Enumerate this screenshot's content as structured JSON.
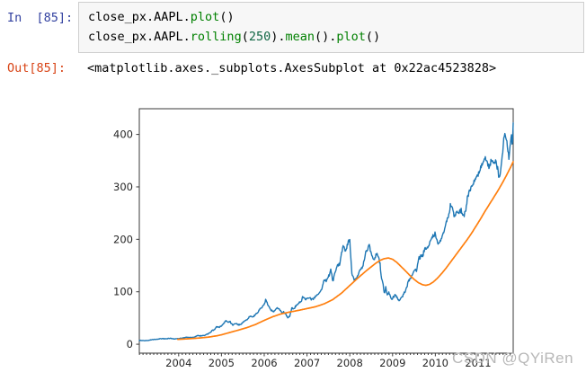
{
  "notebook": {
    "input_prompt": "In  [85]:",
    "output_prompt": "Out[85]:",
    "code_lines": [
      {
        "segments": [
          {
            "text": "close_px.AAPL.",
            "kind": "plain"
          },
          {
            "text": "plot",
            "kind": "method"
          },
          {
            "text": "()",
            "kind": "plain"
          }
        ]
      },
      {
        "segments": [
          {
            "text": "close_px.AAPL.",
            "kind": "plain"
          },
          {
            "text": "rolling",
            "kind": "method"
          },
          {
            "text": "(",
            "kind": "plain"
          },
          {
            "text": "250",
            "kind": "number"
          },
          {
            "text": ").",
            "kind": "plain"
          },
          {
            "text": "mean",
            "kind": "method"
          },
          {
            "text": "().",
            "kind": "plain"
          },
          {
            "text": "plot",
            "kind": "method"
          },
          {
            "text": "()",
            "kind": "plain"
          }
        ]
      }
    ],
    "output_text": "<matplotlib.axes._subplots.AxesSubplot at 0x22ac4523828>",
    "colors": {
      "input_prompt": "#303F9F",
      "output_prompt": "#D84315",
      "plain": "#000000",
      "method": "#008000",
      "number": "#116644",
      "code_bg": "#f7f7f7",
      "code_border": "#cfcfcf"
    }
  },
  "watermark": {
    "text": "CSDN @QYiRen",
    "color": "#b8b8b8"
  },
  "chart_data": {
    "type": "line",
    "title": "",
    "xlabel": "",
    "ylabel": "",
    "grid": false,
    "legend": "none",
    "xlim": [
      2003.08,
      2011.82
    ],
    "ylim": [
      -17,
      449
    ],
    "xticks": [
      2004,
      2005,
      2006,
      2007,
      2008,
      2009,
      2010,
      2011
    ],
    "yticks": [
      0,
      100,
      200,
      300,
      400
    ],
    "frame_color": "#3a3a3a",
    "tick_label_color": "#262626",
    "series": [
      {
        "key": "aapl-close",
        "name": "close_px.AAPL",
        "color": "#1f77b4",
        "width": 1.4,
        "noisy": true,
        "points": [
          [
            2003.08,
            7.2
          ],
          [
            2003.15,
            7.3
          ],
          [
            2003.22,
            7.0
          ],
          [
            2003.3,
            7.4
          ],
          [
            2003.38,
            8.6
          ],
          [
            2003.45,
            9.3
          ],
          [
            2003.5,
            9.6
          ],
          [
            2003.57,
            10.4
          ],
          [
            2003.62,
            11.0
          ],
          [
            2003.68,
            10.3
          ],
          [
            2003.75,
            11.0
          ],
          [
            2003.8,
            11.5
          ],
          [
            2003.85,
            10.4
          ],
          [
            2003.92,
            10.2
          ],
          [
            2003.98,
            10.7
          ],
          [
            2004.05,
            11.3
          ],
          [
            2004.12,
            12.0
          ],
          [
            2004.18,
            13.6
          ],
          [
            2004.25,
            12.9
          ],
          [
            2004.3,
            13.2
          ],
          [
            2004.38,
            14.0
          ],
          [
            2004.45,
            16.3
          ],
          [
            2004.5,
            15.7
          ],
          [
            2004.56,
            16.2
          ],
          [
            2004.62,
            17.3
          ],
          [
            2004.68,
            19.4
          ],
          [
            2004.73,
            21.5
          ],
          [
            2004.78,
            26.2
          ],
          [
            2004.84,
            27.5
          ],
          [
            2004.88,
            33.5
          ],
          [
            2004.95,
            32.2
          ],
          [
            2005.0,
            35.5
          ],
          [
            2005.05,
            38.4
          ],
          [
            2005.1,
            44.9
          ],
          [
            2005.15,
            41.7
          ],
          [
            2005.2,
            43.0
          ],
          [
            2005.26,
            36.1
          ],
          [
            2005.32,
            39.8
          ],
          [
            2005.4,
            36.8
          ],
          [
            2005.46,
            38.2
          ],
          [
            2005.52,
            42.7
          ],
          [
            2005.6,
            46.9
          ],
          [
            2005.64,
            51.3
          ],
          [
            2005.7,
            53.6
          ],
          [
            2005.74,
            51.2
          ],
          [
            2005.8,
            57.6
          ],
          [
            2005.86,
            61.8
          ],
          [
            2005.9,
            67.8
          ],
          [
            2005.96,
            71.9
          ],
          [
            2006.0,
            75.5
          ],
          [
            2006.04,
            85.6
          ],
          [
            2006.08,
            75.0
          ],
          [
            2006.13,
            68.5
          ],
          [
            2006.2,
            62.7
          ],
          [
            2006.25,
            64.5
          ],
          [
            2006.3,
            70.4
          ],
          [
            2006.36,
            66.2
          ],
          [
            2006.42,
            59.8
          ],
          [
            2006.46,
            61.0
          ],
          [
            2006.5,
            57.3
          ],
          [
            2006.55,
            50.7
          ],
          [
            2006.6,
            54.0
          ],
          [
            2006.64,
            67.9
          ],
          [
            2006.7,
            68.0
          ],
          [
            2006.75,
            74.0
          ],
          [
            2006.8,
            77.0
          ],
          [
            2006.86,
            81.1
          ],
          [
            2006.9,
            91.7
          ],
          [
            2006.96,
            84.8
          ],
          [
            2007.0,
            85.7
          ],
          [
            2007.06,
            89.0
          ],
          [
            2007.1,
            84.6
          ],
          [
            2007.16,
            87.0
          ],
          [
            2007.22,
            92.9
          ],
          [
            2007.3,
            99.8
          ],
          [
            2007.35,
            107.0
          ],
          [
            2007.4,
            121.2
          ],
          [
            2007.46,
            122.0
          ],
          [
            2007.52,
            131.8
          ],
          [
            2007.56,
            143.7
          ],
          [
            2007.6,
            119.0
          ],
          [
            2007.66,
            138.5
          ],
          [
            2007.7,
            148.0
          ],
          [
            2007.76,
            153.5
          ],
          [
            2007.8,
            170.0
          ],
          [
            2007.85,
            189.9
          ],
          [
            2007.88,
            178.0
          ],
          [
            2007.92,
            182.2
          ],
          [
            2007.97,
            198.1
          ],
          [
            2008.0,
            194.8
          ],
          [
            2008.05,
            135.4
          ],
          [
            2008.1,
            122.0
          ],
          [
            2008.16,
            125.0
          ],
          [
            2008.22,
            140.0
          ],
          [
            2008.27,
            143.5
          ],
          [
            2008.32,
            152.0
          ],
          [
            2008.37,
            173.9
          ],
          [
            2008.42,
            181.2
          ],
          [
            2008.46,
            188.7
          ],
          [
            2008.52,
            167.4
          ],
          [
            2008.57,
            158.9
          ],
          [
            2008.62,
            173.0
          ],
          [
            2008.66,
            169.5
          ],
          [
            2008.71,
            151.6
          ],
          [
            2008.74,
            127.8
          ],
          [
            2008.78,
            113.7
          ],
          [
            2008.81,
            97.0
          ],
          [
            2008.84,
            107.6
          ],
          [
            2008.88,
            92.0
          ],
          [
            2008.91,
            98.2
          ],
          [
            2008.94,
            92.7
          ],
          [
            2008.98,
            85.4
          ],
          [
            2009.02,
            90.1
          ],
          [
            2009.06,
            94.5
          ],
          [
            2009.1,
            89.3
          ],
          [
            2009.15,
            83.1
          ],
          [
            2009.2,
            89.0
          ],
          [
            2009.26,
            95.0
          ],
          [
            2009.32,
            105.1
          ],
          [
            2009.37,
            119.5
          ],
          [
            2009.42,
            125.8
          ],
          [
            2009.47,
            135.8
          ],
          [
            2009.52,
            142.4
          ],
          [
            2009.56,
            139.0
          ],
          [
            2009.61,
            163.4
          ],
          [
            2009.66,
            168.2
          ],
          [
            2009.71,
            170.0
          ],
          [
            2009.76,
            185.3
          ],
          [
            2009.8,
            182.4
          ],
          [
            2009.85,
            188.5
          ],
          [
            2009.9,
            199.9
          ],
          [
            2009.95,
            205.9
          ],
          [
            2010.0,
            210.7
          ],
          [
            2010.06,
            192.1
          ],
          [
            2010.11,
            196.0
          ],
          [
            2010.16,
            204.6
          ],
          [
            2010.22,
            223.0
          ],
          [
            2010.27,
            235.0
          ],
          [
            2010.32,
            248.9
          ],
          [
            2010.36,
            266.0
          ],
          [
            2010.4,
            256.9
          ],
          [
            2010.45,
            243.0
          ],
          [
            2010.5,
            251.5
          ],
          [
            2010.55,
            246.9
          ],
          [
            2010.6,
            257.3
          ],
          [
            2010.66,
            243.1
          ],
          [
            2010.71,
            255.0
          ],
          [
            2010.76,
            283.8
          ],
          [
            2010.81,
            294.1
          ],
          [
            2010.86,
            301.0
          ],
          [
            2010.9,
            311.2
          ],
          [
            2010.95,
            316.9
          ],
          [
            2011.0,
            322.6
          ],
          [
            2011.05,
            336.1
          ],
          [
            2011.1,
            339.3
          ],
          [
            2011.15,
            360.0
          ],
          [
            2011.2,
            348.5
          ],
          [
            2011.26,
            338.0
          ],
          [
            2011.31,
            350.1
          ],
          [
            2011.36,
            346.3
          ],
          [
            2011.41,
            347.8
          ],
          [
            2011.46,
            332.0
          ],
          [
            2011.5,
            315.2
          ],
          [
            2011.55,
            346.0
          ],
          [
            2011.6,
            390.5
          ],
          [
            2011.63,
            403.4
          ],
          [
            2011.66,
            389.0
          ],
          [
            2011.69,
            373.7
          ],
          [
            2011.72,
            356.0
          ],
          [
            2011.75,
            384.8
          ],
          [
            2011.78,
            395.3
          ],
          [
            2011.8,
            377.5
          ],
          [
            2011.82,
            422.0
          ]
        ]
      },
      {
        "key": "rolling-mean-250",
        "name": "close_px.AAPL.rolling(250).mean()",
        "color": "#ff7f0e",
        "width": 1.7,
        "noisy": false,
        "points": [
          [
            2003.98,
            9.3
          ],
          [
            2004.1,
            9.8
          ],
          [
            2004.3,
            10.8
          ],
          [
            2004.5,
            12.0
          ],
          [
            2004.7,
            13.6
          ],
          [
            2004.9,
            16.2
          ],
          [
            2005.0,
            18.0
          ],
          [
            2005.2,
            22.5
          ],
          [
            2005.4,
            27.0
          ],
          [
            2005.6,
            31.8
          ],
          [
            2005.8,
            37.8
          ],
          [
            2006.0,
            45.5
          ],
          [
            2006.2,
            52.5
          ],
          [
            2006.4,
            58.0
          ],
          [
            2006.6,
            61.5
          ],
          [
            2006.8,
            64.5
          ],
          [
            2007.0,
            68.0
          ],
          [
            2007.2,
            71.5
          ],
          [
            2007.4,
            77.0
          ],
          [
            2007.6,
            85.0
          ],
          [
            2007.8,
            97.0
          ],
          [
            2008.0,
            112.0
          ],
          [
            2008.2,
            127.0
          ],
          [
            2008.4,
            141.0
          ],
          [
            2008.6,
            154.0
          ],
          [
            2008.7,
            159.5
          ],
          [
            2008.8,
            163.0
          ],
          [
            2008.9,
            164.5
          ],
          [
            2009.0,
            162.0
          ],
          [
            2009.1,
            156.0
          ],
          [
            2009.2,
            148.0
          ],
          [
            2009.3,
            140.0
          ],
          [
            2009.4,
            131.5
          ],
          [
            2009.5,
            124.0
          ],
          [
            2009.6,
            117.5
          ],
          [
            2009.7,
            113.5
          ],
          [
            2009.78,
            112.3
          ],
          [
            2009.86,
            114.0
          ],
          [
            2009.95,
            118.5
          ],
          [
            2010.05,
            126.0
          ],
          [
            2010.15,
            135.0
          ],
          [
            2010.25,
            145.0
          ],
          [
            2010.35,
            156.0
          ],
          [
            2010.45,
            167.0
          ],
          [
            2010.55,
            178.0
          ],
          [
            2010.65,
            189.0
          ],
          [
            2010.75,
            200.0
          ],
          [
            2010.85,
            212.0
          ],
          [
            2010.95,
            225.0
          ],
          [
            2011.05,
            238.0
          ],
          [
            2011.15,
            252.0
          ],
          [
            2011.25,
            265.0
          ],
          [
            2011.35,
            278.0
          ],
          [
            2011.45,
            291.0
          ],
          [
            2011.55,
            305.0
          ],
          [
            2011.65,
            320.0
          ],
          [
            2011.75,
            336.0
          ],
          [
            2011.82,
            348.0
          ]
        ]
      }
    ]
  }
}
